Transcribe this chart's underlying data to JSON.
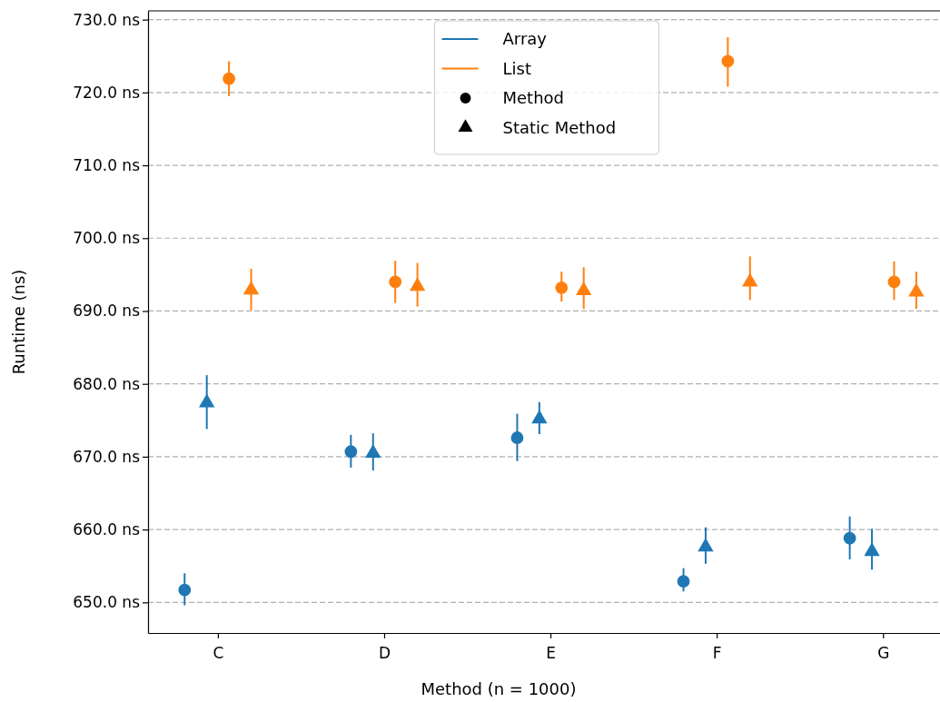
{
  "chart_data": {
    "type": "scatter",
    "xlabel": "Method (n = 1000)",
    "ylabel": "Runtime (ns)",
    "categories": [
      "C",
      "D",
      "E",
      "F",
      "G"
    ],
    "ylim": [
      645.8,
      731.2
    ],
    "yticks": [
      {
        "value": 650,
        "label": "650.0 ns"
      },
      {
        "value": 660,
        "label": "660.0 ns"
      },
      {
        "value": 670,
        "label": "670.0 ns"
      },
      {
        "value": 680,
        "label": "680.0 ns"
      },
      {
        "value": 690,
        "label": "690.0 ns"
      },
      {
        "value": 700,
        "label": "700.0 ns"
      },
      {
        "value": 710,
        "label": "710.0 ns"
      },
      {
        "value": 720,
        "label": "720.0 ns"
      },
      {
        "value": 730,
        "label": "730.0 ns"
      }
    ],
    "grid": "y",
    "legend": "top",
    "annotations": [
      "Method",
      "Static Method"
    ],
    "series": [
      {
        "name": "Array",
        "color": "#1f77b4",
        "marker": "circle",
        "x": [
          "C",
          "D",
          "E",
          "F",
          "G"
        ],
        "values": [
          651.7,
          670.7,
          672.6,
          652.9,
          658.8
        ],
        "errors": [
          [
            649.6,
            654.0
          ],
          [
            668.5,
            673.0
          ],
          [
            669.4,
            675.9
          ],
          [
            651.5,
            654.7
          ],
          [
            655.9,
            661.8
          ]
        ]
      },
      {
        "color": "#1f77b4",
        "marker": "triangle",
        "x": [
          "C",
          "D",
          "E",
          "F",
          "G"
        ],
        "values": [
          677.4,
          670.5,
          675.2,
          657.6,
          657.0
        ],
        "errors": [
          [
            673.8,
            681.2
          ],
          [
            668.1,
            673.2
          ],
          [
            673.1,
            677.5
          ],
          [
            655.3,
            660.3
          ],
          [
            654.5,
            660.1
          ]
        ]
      },
      {
        "name": "List",
        "color": "#ff7f0e",
        "marker": "circle",
        "x": [
          "C",
          "D",
          "E",
          "F",
          "G"
        ],
        "values": [
          721.9,
          694.0,
          693.2,
          724.3,
          694.0
        ],
        "errors": [
          [
            719.5,
            724.3
          ],
          [
            691.1,
            696.9
          ],
          [
            691.3,
            695.4
          ],
          [
            720.8,
            727.6
          ],
          [
            691.5,
            696.8
          ]
        ]
      },
      {
        "color": "#ff7f0e",
        "marker": "triangle",
        "x": [
          "C",
          "D",
          "E",
          "F",
          "G"
        ],
        "values": [
          692.9,
          693.4,
          692.8,
          694.0,
          692.6
        ],
        "errors": [
          [
            690.1,
            695.8
          ],
          [
            690.6,
            696.6
          ],
          [
            690.3,
            696.0
          ],
          [
            691.5,
            697.5
          ],
          [
            690.3,
            695.4
          ]
        ]
      }
    ]
  }
}
